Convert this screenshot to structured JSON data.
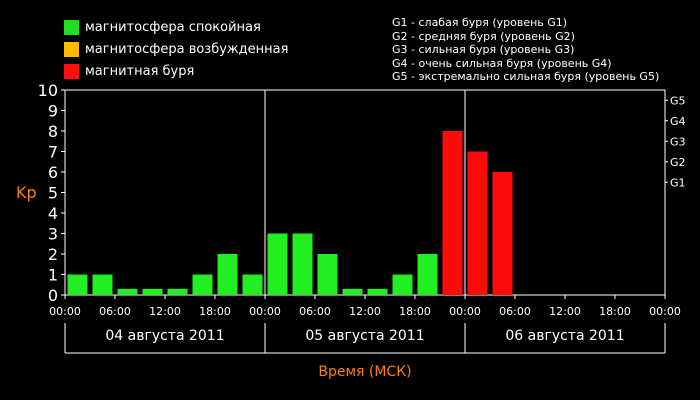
{
  "legend": {
    "items": [
      {
        "label": "магнитосфера спокойная",
        "color": "#22dd22"
      },
      {
        "label": "магнитосфера возбужденная",
        "color": "#ffbb00"
      },
      {
        "label": "магнитная буря",
        "color": "#ff1010"
      }
    ]
  },
  "g_legend": [
    "G1 - слабая буря (уровень G1)",
    "G2 - средняя буря (уровень G2)",
    "G3 - сильная буря (уровень G3)",
    "G4 - очень сильная буря (уровень G4)",
    "G5 - экстремально сильная буря (уровень G5)"
  ],
  "chart_data": {
    "type": "bar",
    "ylabel": "Kp",
    "xlabel": "Время (МСК)",
    "ylim": [
      0,
      10
    ],
    "y_ticks": [
      "0",
      "1",
      "2",
      "3",
      "4",
      "5",
      "6",
      "7",
      "8",
      "9",
      "10"
    ],
    "g_ticks": [
      {
        "label": "G1",
        "kp": 5
      },
      {
        "label": "G2",
        "kp": 6
      },
      {
        "label": "G3",
        "kp": 7
      },
      {
        "label": "G4",
        "kp": 8
      },
      {
        "label": "G5",
        "kp": 9
      }
    ],
    "x_tick_labels": [
      "00:00",
      "06:00",
      "12:00",
      "18:00",
      "00:00",
      "06:00",
      "12:00",
      "18:00",
      "00:00",
      "06:00",
      "12:00",
      "18:00",
      "00:00"
    ],
    "days": [
      "04 августа 2011",
      "05 августа 2011",
      "06 августа 2011"
    ],
    "colors": {
      "quiet": "#22ee22",
      "storm": "#ff0a0a"
    },
    "bars": [
      {
        "value": 1,
        "status": "quiet"
      },
      {
        "value": 1,
        "status": "quiet"
      },
      {
        "value": 0,
        "status": "quiet"
      },
      {
        "value": 0,
        "status": "quiet"
      },
      {
        "value": 0,
        "status": "quiet"
      },
      {
        "value": 1,
        "status": "quiet"
      },
      {
        "value": 2,
        "status": "quiet"
      },
      {
        "value": 1,
        "status": "quiet"
      },
      {
        "value": 3,
        "status": "quiet"
      },
      {
        "value": 3,
        "status": "quiet"
      },
      {
        "value": 2,
        "status": "quiet"
      },
      {
        "value": 0,
        "status": "quiet"
      },
      {
        "value": 0,
        "status": "quiet"
      },
      {
        "value": 1,
        "status": "quiet"
      },
      {
        "value": 2,
        "status": "quiet"
      },
      {
        "value": 8,
        "status": "storm"
      },
      {
        "value": 7,
        "status": "storm"
      },
      {
        "value": 6,
        "status": "storm"
      }
    ]
  }
}
